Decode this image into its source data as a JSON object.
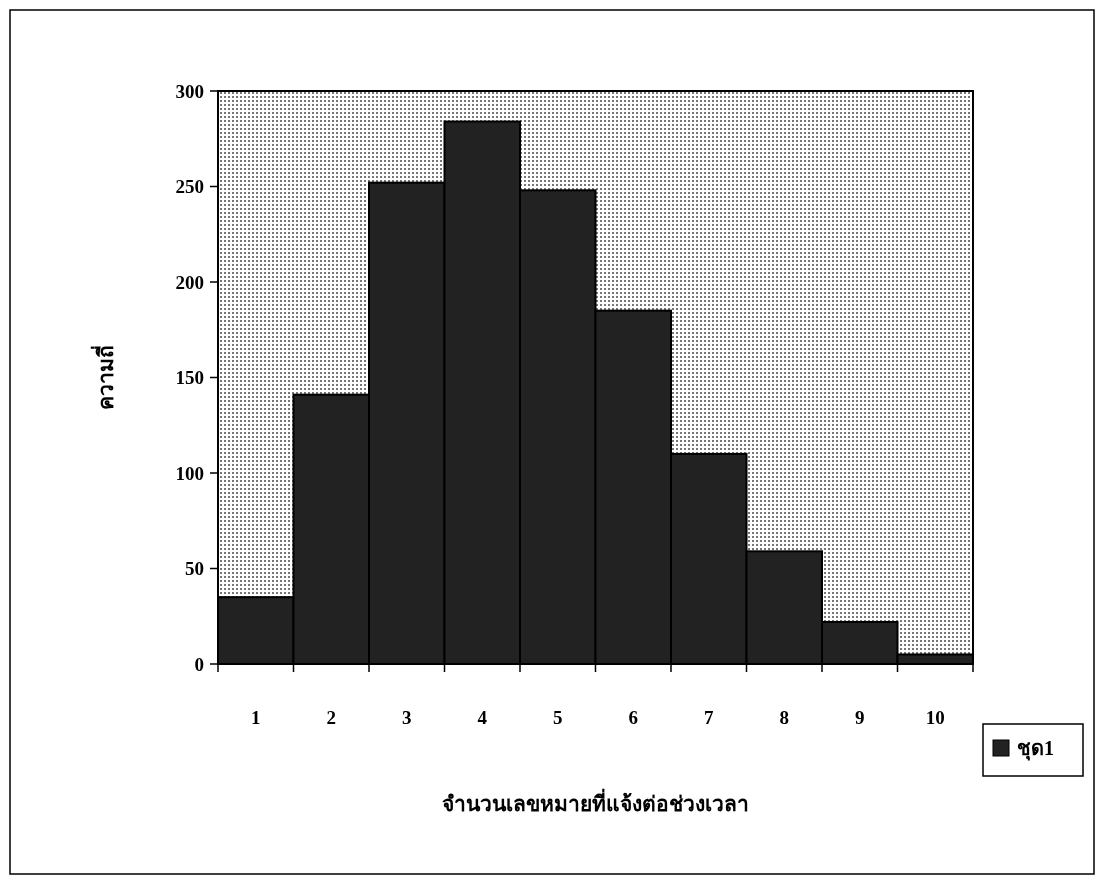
{
  "chart_data": {
    "type": "bar",
    "xlabel": "จำนวนเลขหมายที่แจ้งต่อช่วงเวลา",
    "ylabel": "ความถี่",
    "categories": [
      "1",
      "2",
      "3",
      "4",
      "5",
      "6",
      "7",
      "8",
      "9",
      "10"
    ],
    "series": [
      {
        "name": "ชุด1",
        "color": "#222222",
        "values": [
          35,
          141,
          252,
          284,
          248,
          185,
          110,
          59,
          22,
          5
        ]
      }
    ],
    "ylim": [
      0,
      300
    ],
    "yticks": [
      0,
      50,
      100,
      150,
      200,
      250,
      300
    ],
    "legend": "right"
  }
}
